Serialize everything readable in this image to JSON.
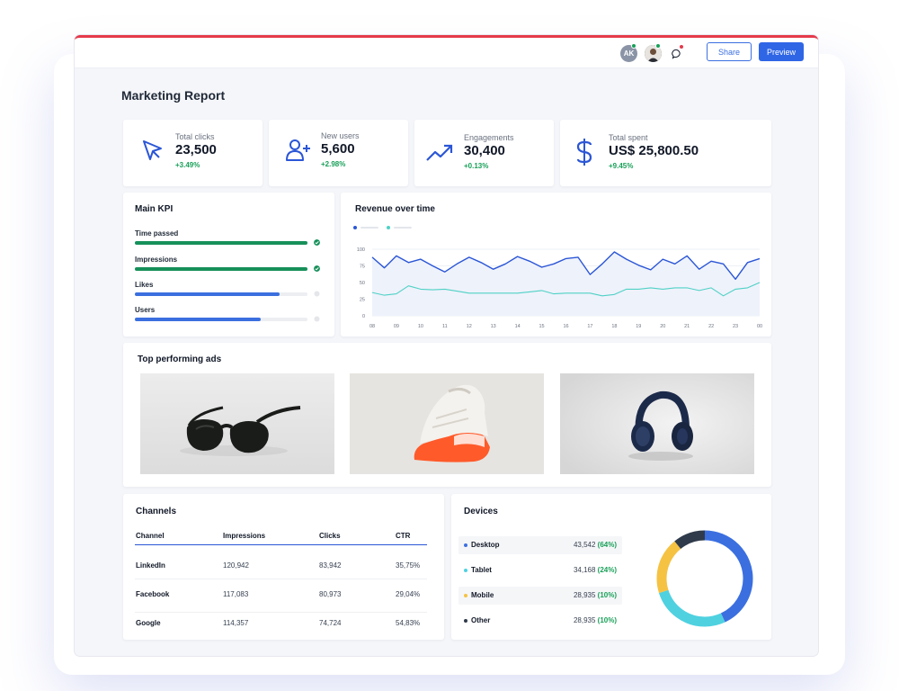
{
  "header": {
    "avatar_initials": "AK",
    "share_label": "Share",
    "preview_label": "Preview"
  },
  "page": {
    "title": "Marketing Report"
  },
  "stats": [
    {
      "label": "Total clicks",
      "value": "23,500",
      "delta": "+3.49%",
      "icon": "cursor-icon"
    },
    {
      "label": "New users",
      "value": "5,600",
      "delta": "+2.98%",
      "icon": "add-user-icon"
    },
    {
      "label": "Engagements",
      "value": "30,400",
      "delta": "+0.13%",
      "icon": "trending-up-icon"
    },
    {
      "label": "Total spent",
      "value": "US$ 25,800.50",
      "delta": "+9.45%",
      "icon": "dollar-icon"
    }
  ],
  "main_kpi": {
    "title": "Main KPI",
    "items": [
      {
        "label": "Time passed",
        "progress": 1.0,
        "color": "#16905a",
        "done": true
      },
      {
        "label": "Impressions",
        "progress": 1.0,
        "color": "#16905a",
        "done": true
      },
      {
        "label": "Likes",
        "progress": 0.84,
        "color": "#3b6fe0",
        "done": false
      },
      {
        "label": "Users",
        "progress": 0.73,
        "color": "#3b6fe0",
        "done": false
      }
    ]
  },
  "revenue": {
    "title": "Revenue over time"
  },
  "chart_data": {
    "type": "line",
    "title": "Revenue over time",
    "categories": [
      "08",
      "",
      "09",
      "",
      "10",
      "",
      "11",
      "",
      "12",
      "",
      "13",
      "",
      "14",
      "",
      "15",
      "",
      "16",
      "",
      "17",
      "",
      "18",
      "",
      "19",
      "",
      "20",
      "",
      "21",
      "",
      "22",
      "",
      "23",
      "",
      "00"
    ],
    "ylim": [
      0,
      100
    ],
    "yticks": [
      0,
      25,
      50,
      75,
      100
    ],
    "xticks": [
      "08",
      "09",
      "10",
      "11",
      "12",
      "13",
      "14",
      "15",
      "16",
      "17",
      "18",
      "19",
      "20",
      "21",
      "22",
      "23",
      "00"
    ],
    "series": [
      {
        "values": [
          88,
          72,
          90,
          80,
          85,
          75,
          66,
          78,
          88,
          80,
          70,
          78,
          89,
          82,
          73,
          78,
          86,
          88,
          62,
          78,
          96,
          85,
          76,
          69,
          85,
          78,
          90,
          70,
          82,
          78,
          55,
          80,
          86
        ],
        "color": "#2b56d6"
      },
      {
        "values": [
          35,
          31,
          33,
          45,
          40,
          39,
          40,
          37,
          34,
          34,
          34,
          34,
          34,
          36,
          38,
          33,
          34,
          34,
          34,
          30,
          32,
          40,
          40,
          42,
          40,
          42,
          42,
          38,
          42,
          30,
          40,
          42,
          50
        ],
        "color": "#4fd1c5"
      }
    ],
    "grid": true
  },
  "ads": {
    "title": "Top performing ads",
    "items": [
      "sunglasses-image",
      "sneaker-image",
      "headphones-image"
    ]
  },
  "channels": {
    "title": "Channels",
    "headers": [
      "Channel",
      "Impressions",
      "Clicks",
      "CTR"
    ],
    "rows": [
      [
        "LinkedIn",
        "120,942",
        "83,942",
        "35,75%"
      ],
      [
        "Facebook",
        "117,083",
        "80,973",
        "29,04%"
      ],
      [
        "Google",
        "114,357",
        "74,724",
        "54,83%"
      ]
    ]
  },
  "devices": {
    "title": "Devices",
    "items": [
      {
        "name": "Desktop",
        "value": "43,542",
        "pct": "(64%)",
        "share": 0.43,
        "color": "#3b6fe0"
      },
      {
        "name": "Tablet",
        "value": "34,168",
        "pct": "(24%)",
        "share": 0.27,
        "color": "#4fd1e0"
      },
      {
        "name": "Mobile",
        "value": "28,935",
        "pct": "(10%)",
        "share": 0.19,
        "color": "#f5c242"
      },
      {
        "name": "Other",
        "value": "28,935",
        "pct": "(10%)",
        "share": 0.11,
        "color": "#2f3a4a"
      }
    ]
  }
}
